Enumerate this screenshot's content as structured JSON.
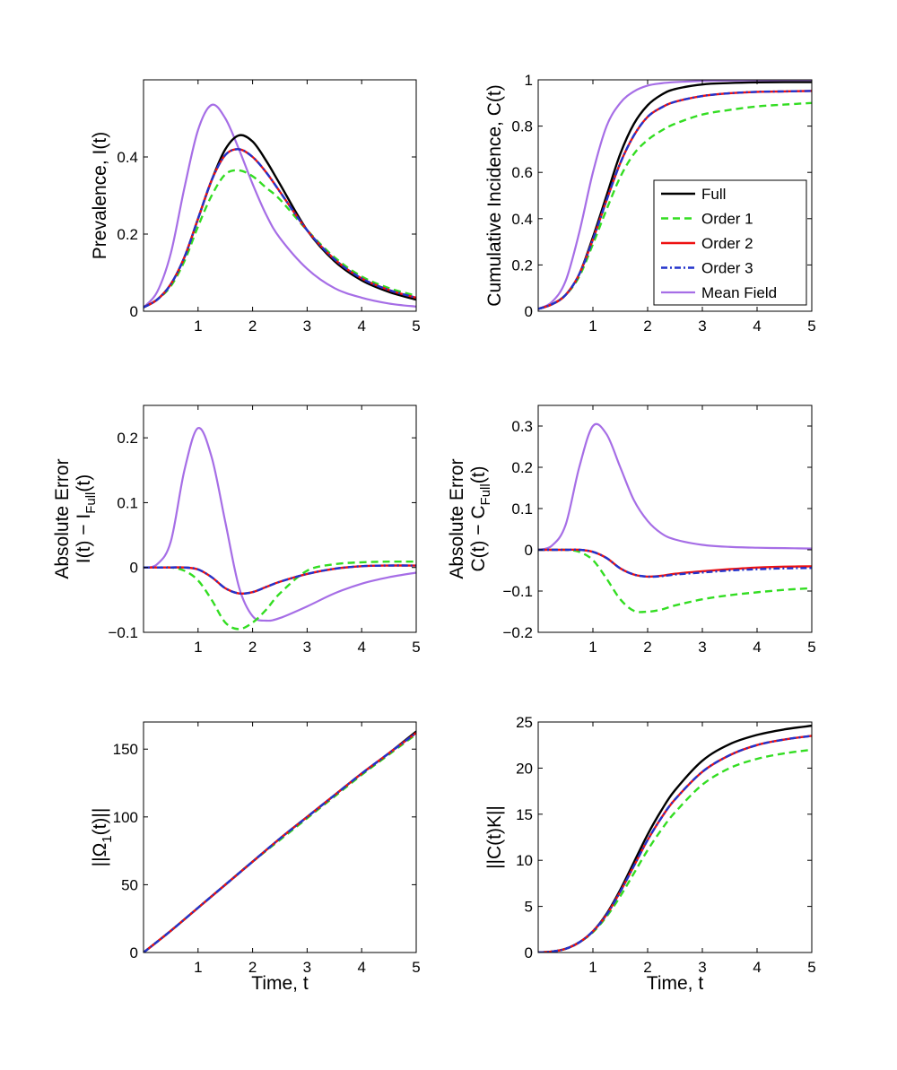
{
  "figure": {
    "series_styles": {
      "full": {
        "label": "Full",
        "color": "#000000",
        "dash": "none"
      },
      "order1": {
        "label": "Order 1",
        "color": "#33dd22",
        "dash": "8,5"
      },
      "order2": {
        "label": "Order 2",
        "color": "#ee1111",
        "dash": "none"
      },
      "order3": {
        "label": "Order 3",
        "color": "#2233cc",
        "dash": "7,3,2,3"
      },
      "meanfield": {
        "label": "Mean Field",
        "color": "#a66ee6",
        "dash": "none"
      }
    },
    "legend": {
      "panel": "cumulative",
      "position": "lower-right",
      "order": [
        "full",
        "order1",
        "order2",
        "order3",
        "meanfield"
      ]
    }
  },
  "chart_data": [
    {
      "id": "prevalence",
      "type": "line",
      "ylabel": [
        "Prevalence, I(t)"
      ],
      "xlabel": "",
      "xlim": [
        0,
        5
      ],
      "ylim": [
        0,
        0.6
      ],
      "xticks": [
        1,
        2,
        3,
        4,
        5
      ],
      "yticks": [
        0,
        0.2,
        0.4
      ],
      "ytick_labels": [
        "0",
        "0.2",
        "0.4"
      ],
      "x": [
        0,
        0.25,
        0.5,
        0.75,
        1,
        1.25,
        1.5,
        1.75,
        2,
        2.25,
        2.5,
        3,
        3.5,
        4,
        4.5,
        5
      ],
      "series": [
        {
          "key": "full",
          "values": [
            0.01,
            0.03,
            0.07,
            0.14,
            0.24,
            0.34,
            0.42,
            0.456,
            0.44,
            0.39,
            0.33,
            0.21,
            0.13,
            0.08,
            0.05,
            0.03
          ]
        },
        {
          "key": "order1",
          "values": [
            0.01,
            0.03,
            0.065,
            0.13,
            0.22,
            0.3,
            0.355,
            0.365,
            0.35,
            0.32,
            0.29,
            0.21,
            0.14,
            0.09,
            0.06,
            0.04
          ]
        },
        {
          "key": "order2",
          "values": [
            0.01,
            0.03,
            0.07,
            0.14,
            0.24,
            0.34,
            0.405,
            0.42,
            0.4,
            0.36,
            0.31,
            0.21,
            0.135,
            0.085,
            0.055,
            0.035
          ]
        },
        {
          "key": "order3",
          "values": [
            0.01,
            0.03,
            0.07,
            0.14,
            0.24,
            0.34,
            0.405,
            0.42,
            0.4,
            0.36,
            0.31,
            0.21,
            0.135,
            0.085,
            0.055,
            0.035
          ]
        },
        {
          "key": "meanfield",
          "values": [
            0.01,
            0.05,
            0.15,
            0.32,
            0.47,
            0.535,
            0.5,
            0.42,
            0.33,
            0.25,
            0.19,
            0.11,
            0.06,
            0.035,
            0.02,
            0.012
          ]
        }
      ]
    },
    {
      "id": "cumulative",
      "type": "line",
      "ylabel": [
        "Cumulative Incidence, C(t)"
      ],
      "xlabel": "",
      "xlim": [
        0,
        5
      ],
      "ylim": [
        0,
        1
      ],
      "xticks": [
        1,
        2,
        3,
        4,
        5
      ],
      "yticks": [
        0,
        0.2,
        0.4,
        0.6,
        0.8,
        1
      ],
      "ytick_labels": [
        "0",
        "0.2",
        "0.4",
        "0.6",
        "0.8",
        "1"
      ],
      "x": [
        0,
        0.25,
        0.5,
        0.75,
        1,
        1.25,
        1.5,
        1.75,
        2,
        2.25,
        2.5,
        3,
        3.5,
        4,
        4.5,
        5
      ],
      "series": [
        {
          "key": "full",
          "values": [
            0.01,
            0.03,
            0.07,
            0.16,
            0.32,
            0.5,
            0.68,
            0.81,
            0.89,
            0.935,
            0.96,
            0.98,
            0.986,
            0.989,
            0.99,
            0.99
          ]
        },
        {
          "key": "order1",
          "values": [
            0.01,
            0.03,
            0.07,
            0.15,
            0.29,
            0.44,
            0.58,
            0.68,
            0.74,
            0.78,
            0.81,
            0.85,
            0.87,
            0.885,
            0.893,
            0.9
          ]
        },
        {
          "key": "order2",
          "values": [
            0.01,
            0.03,
            0.07,
            0.16,
            0.31,
            0.48,
            0.64,
            0.76,
            0.84,
            0.88,
            0.905,
            0.93,
            0.942,
            0.948,
            0.95,
            0.952
          ]
        },
        {
          "key": "order3",
          "values": [
            0.01,
            0.03,
            0.07,
            0.16,
            0.31,
            0.48,
            0.64,
            0.76,
            0.84,
            0.88,
            0.905,
            0.93,
            0.942,
            0.948,
            0.95,
            0.952
          ]
        },
        {
          "key": "meanfield",
          "values": [
            0.01,
            0.04,
            0.13,
            0.34,
            0.6,
            0.8,
            0.9,
            0.95,
            0.975,
            0.985,
            0.99,
            0.995,
            0.997,
            0.998,
            0.999,
            0.999
          ]
        }
      ]
    },
    {
      "id": "abs-error-i",
      "type": "line",
      "ylabel": [
        "Absolute Error",
        "I(t) − I",
        "Full",
        "(t)"
      ],
      "xlabel": "",
      "xlim": [
        0,
        5
      ],
      "ylim": [
        -0.1,
        0.25
      ],
      "xticks": [
        1,
        2,
        3,
        4,
        5
      ],
      "yticks": [
        -0.1,
        0,
        0.1,
        0.2
      ],
      "ytick_labels": [
        "−0.1",
        "0",
        "0.1",
        "0.2"
      ],
      "x": [
        0,
        0.25,
        0.5,
        0.75,
        1,
        1.25,
        1.5,
        1.75,
        2,
        2.25,
        2.5,
        3,
        3.5,
        4,
        4.5,
        5
      ],
      "series": [
        {
          "key": "order1",
          "values": [
            0,
            0,
            0,
            -0.005,
            -0.02,
            -0.05,
            -0.085,
            -0.095,
            -0.085,
            -0.065,
            -0.04,
            -0.005,
            0.005,
            0.008,
            0.009,
            0.009
          ]
        },
        {
          "key": "order2",
          "values": [
            0,
            0,
            0,
            0,
            -0.003,
            -0.015,
            -0.032,
            -0.04,
            -0.038,
            -0.03,
            -0.022,
            -0.01,
            -0.002,
            0.002,
            0.003,
            0.003
          ]
        },
        {
          "key": "order3",
          "values": [
            0,
            0,
            0,
            0,
            -0.003,
            -0.015,
            -0.032,
            -0.04,
            -0.038,
            -0.03,
            -0.022,
            -0.01,
            -0.002,
            0.002,
            0.003,
            0.003
          ]
        },
        {
          "key": "meanfield",
          "values": [
            0,
            0.005,
            0.04,
            0.15,
            0.215,
            0.17,
            0.07,
            -0.03,
            -0.075,
            -0.082,
            -0.078,
            -0.06,
            -0.04,
            -0.025,
            -0.015,
            -0.008
          ]
        }
      ]
    },
    {
      "id": "abs-error-c",
      "type": "line",
      "ylabel": [
        "Absolute Error",
        "C(t) − C",
        "Full",
        "(t)"
      ],
      "xlabel": "",
      "xlim": [
        0,
        5
      ],
      "ylim": [
        -0.2,
        0.35
      ],
      "xticks": [
        1,
        2,
        3,
        4,
        5
      ],
      "yticks": [
        -0.2,
        -0.1,
        0,
        0.1,
        0.2,
        0.3
      ],
      "ytick_labels": [
        "−0.2",
        "−0.1",
        "0",
        "0.1",
        "0.2",
        "0.3"
      ],
      "x": [
        0,
        0.25,
        0.5,
        0.75,
        1,
        1.25,
        1.5,
        1.75,
        2,
        2.25,
        2.5,
        3,
        3.5,
        4,
        4.5,
        5
      ],
      "series": [
        {
          "key": "order1",
          "values": [
            0,
            0,
            0,
            -0.005,
            -0.025,
            -0.07,
            -0.12,
            -0.148,
            -0.15,
            -0.145,
            -0.135,
            -0.12,
            -0.11,
            -0.103,
            -0.097,
            -0.093
          ]
        },
        {
          "key": "order2",
          "values": [
            0,
            0,
            0,
            0,
            -0.005,
            -0.02,
            -0.045,
            -0.06,
            -0.065,
            -0.063,
            -0.058,
            -0.052,
            -0.047,
            -0.043,
            -0.041,
            -0.04
          ]
        },
        {
          "key": "order3",
          "values": [
            0,
            0,
            0,
            0,
            -0.005,
            -0.02,
            -0.045,
            -0.06,
            -0.065,
            -0.064,
            -0.06,
            -0.055,
            -0.05,
            -0.047,
            -0.045,
            -0.044
          ]
        },
        {
          "key": "meanfield",
          "values": [
            0,
            0.01,
            0.06,
            0.2,
            0.3,
            0.28,
            0.2,
            0.12,
            0.07,
            0.04,
            0.025,
            0.012,
            0.007,
            0.005,
            0.004,
            0.003
          ]
        }
      ]
    },
    {
      "id": "omega-norm",
      "type": "line",
      "ylabel": [
        "||Ω",
        "1",
        "(t)||"
      ],
      "xlabel": "Time, t",
      "xlim": [
        0,
        5
      ],
      "ylim": [
        0,
        170
      ],
      "xticks": [
        1,
        2,
        3,
        4,
        5
      ],
      "yticks": [
        0,
        50,
        100,
        150
      ],
      "ytick_labels": [
        "0",
        "50",
        "100",
        "150"
      ],
      "x": [
        0,
        0.5,
        1,
        1.5,
        2,
        2.5,
        3,
        3.5,
        4,
        4.5,
        5
      ],
      "series": [
        {
          "key": "full",
          "values": [
            0,
            16,
            33,
            50,
            67,
            84,
            100,
            116,
            132,
            147,
            163
          ]
        },
        {
          "key": "order1",
          "values": [
            0,
            16,
            33,
            50,
            67,
            83,
            99,
            115,
            131,
            146,
            161
          ]
        },
        {
          "key": "order2",
          "values": [
            0,
            16,
            33,
            50,
            67,
            84,
            100,
            116,
            132,
            147,
            162
          ]
        },
        {
          "key": "order3",
          "values": [
            0,
            16,
            33,
            50,
            67,
            84,
            100,
            116,
            132,
            147,
            162
          ]
        }
      ]
    },
    {
      "id": "ck-norm",
      "type": "line",
      "ylabel": [
        "||C(t)K||"
      ],
      "xlabel": "Time, t",
      "xlim": [
        0,
        5
      ],
      "ylim": [
        0,
        25
      ],
      "xticks": [
        1,
        2,
        3,
        4,
        5
      ],
      "yticks": [
        0,
        5,
        10,
        15,
        20,
        25
      ],
      "ytick_labels": [
        "0",
        "5",
        "10",
        "15",
        "20",
        "25"
      ],
      "x": [
        0,
        0.25,
        0.5,
        0.75,
        1,
        1.25,
        1.5,
        1.75,
        2,
        2.25,
        2.5,
        3,
        3.5,
        4,
        4.5,
        5
      ],
      "series": [
        {
          "key": "full",
          "values": [
            0,
            0.1,
            0.4,
            1.1,
            2.3,
            4.2,
            6.8,
            9.8,
            12.8,
            15.4,
            17.6,
            20.8,
            22.6,
            23.6,
            24.2,
            24.6
          ]
        },
        {
          "key": "order1",
          "values": [
            0,
            0.1,
            0.4,
            1.1,
            2.2,
            3.9,
            6.1,
            8.6,
            11.1,
            13.3,
            15.2,
            18.2,
            20.0,
            21.0,
            21.6,
            22.0
          ]
        },
        {
          "key": "order2",
          "values": [
            0,
            0.1,
            0.4,
            1.1,
            2.3,
            4.1,
            6.6,
            9.4,
            12.2,
            14.6,
            16.6,
            19.6,
            21.4,
            22.5,
            23.1,
            23.5
          ]
        },
        {
          "key": "order3",
          "values": [
            0,
            0.1,
            0.4,
            1.1,
            2.3,
            4.1,
            6.6,
            9.4,
            12.2,
            14.6,
            16.6,
            19.6,
            21.4,
            22.5,
            23.1,
            23.5
          ]
        }
      ]
    }
  ]
}
